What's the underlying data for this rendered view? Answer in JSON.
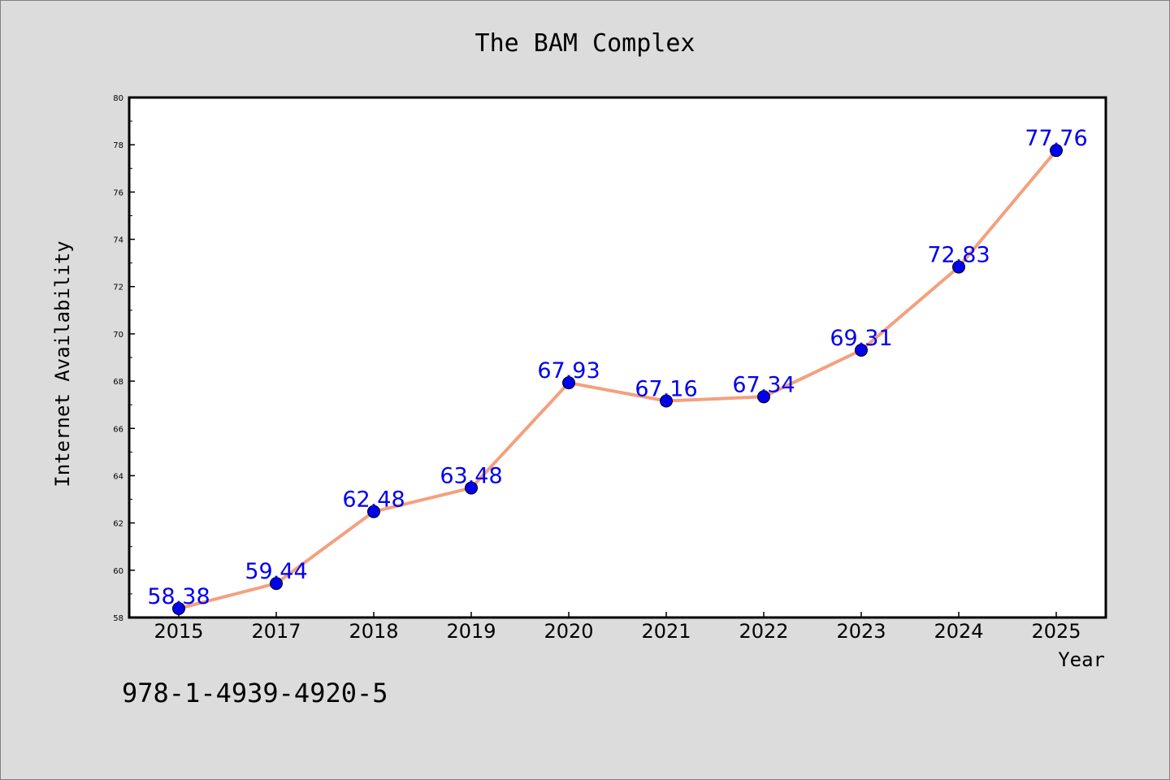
{
  "chart_data": {
    "type": "line",
    "title": "The BAM Complex",
    "xlabel": "Year",
    "ylabel": "Internet Availability",
    "categories": [
      "2015",
      "2017",
      "2018",
      "2019",
      "2020",
      "2021",
      "2022",
      "2023",
      "2024",
      "2025"
    ],
    "series": [
      {
        "values": [
          58.38,
          59.44,
          62.48,
          63.48,
          67.93,
          67.16,
          67.34,
          69.31,
          72.83,
          77.76
        ],
        "data_labels": [
          "58.38",
          "59.44",
          "62.48",
          "63.48",
          "67.93",
          "67.16",
          "67.34",
          "69.31",
          "72.83",
          "77.76"
        ],
        "line_color": "#f4a07f",
        "marker_color": "#0000ee",
        "label_color": "#0000ee"
      }
    ],
    "ylim": [
      58,
      80
    ],
    "yticks": [
      "58",
      "60",
      "62",
      "64",
      "66",
      "68",
      "70",
      "72",
      "74",
      "76",
      "78",
      "80"
    ],
    "grid": false,
    "legend": "none",
    "background": "#dcdcdc",
    "plot_background": "#ffffff"
  },
  "footer": {
    "code": "978-1-4939-4920-5"
  }
}
